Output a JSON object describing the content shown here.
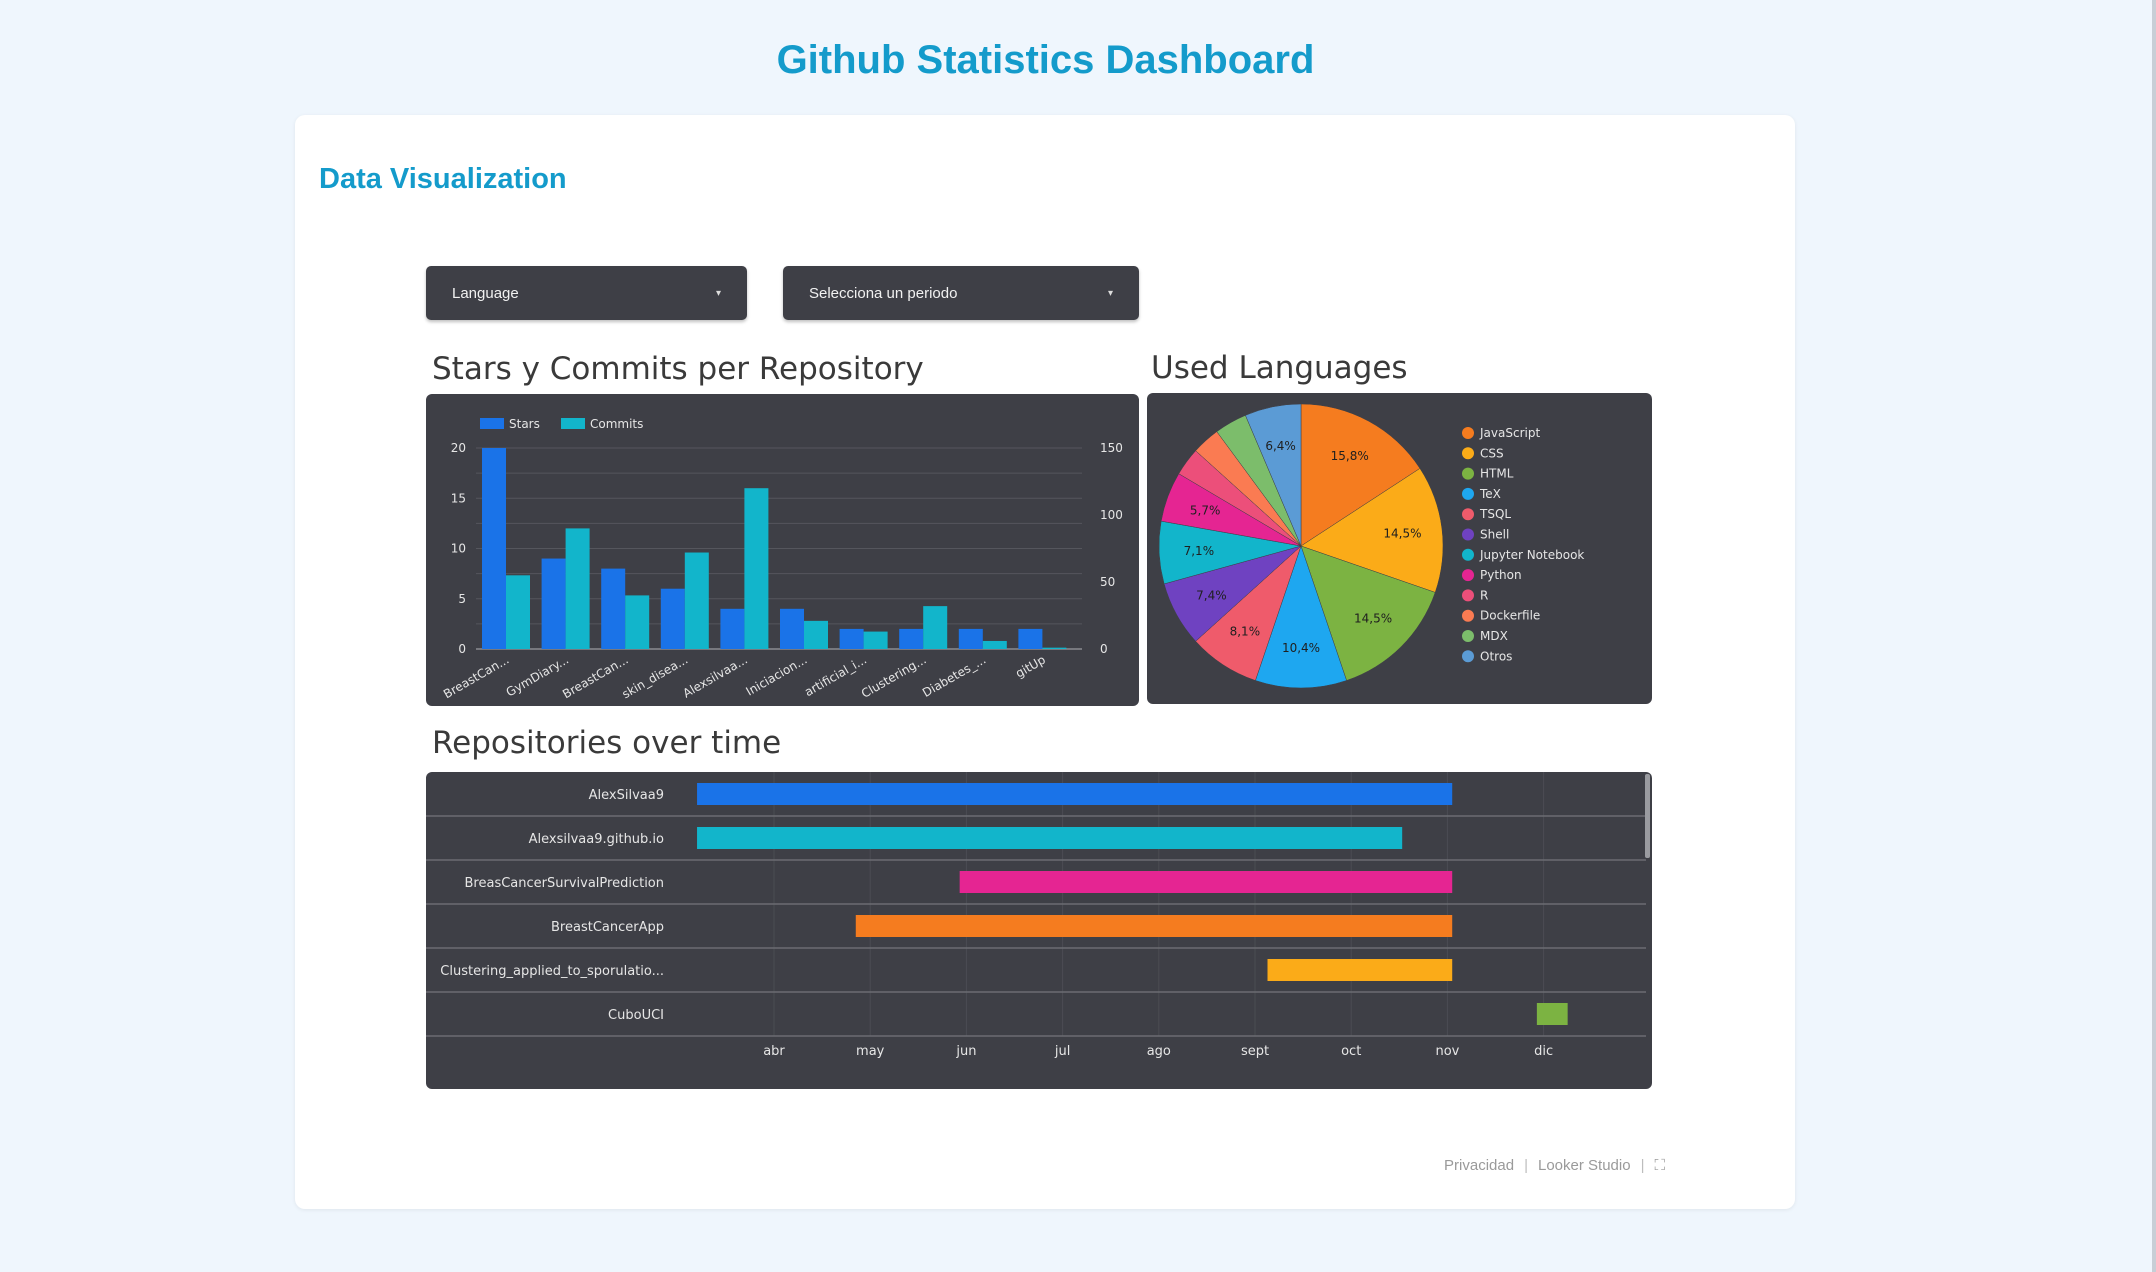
{
  "page": {
    "title": "Github Statistics Dashboard"
  },
  "card": {
    "title": "Data Visualization"
  },
  "filters": {
    "language": "Language",
    "period": "Selecciona un periodo"
  },
  "charts": {
    "bar_title": "Stars y Commits per Repository",
    "pie_title": "Used Languages",
    "gantt_title": "Repositories over time"
  },
  "footer": {
    "privacy": "Privacidad",
    "brand": "Looker Studio"
  },
  "colors": {
    "stars": "#1a73e8",
    "commits": "#12b5cb",
    "panel": "#3e3f46"
  },
  "chart_data": [
    {
      "type": "bar",
      "categories": [
        "BreastCan...",
        "GymDiary...",
        "BreastCan...",
        "skin_disea...",
        "Alexsilvaa...",
        "Iniciacion...",
        "artificial_i...",
        "Clustering...",
        "Diabetes_...",
        "gitUp"
      ],
      "series": [
        {
          "name": "Stars",
          "axis": "left",
          "values": [
            20,
            9,
            8,
            6,
            4,
            4,
            2,
            2,
            2,
            2
          ]
        },
        {
          "name": "Commits",
          "axis": "right",
          "values": [
            55,
            90,
            40,
            72,
            120,
            21,
            13,
            32,
            6,
            1
          ]
        }
      ],
      "left_ticks": [
        0,
        5,
        10,
        15,
        20
      ],
      "right_ticks": [
        0,
        50,
        100,
        150
      ],
      "ylim_left": [
        0,
        20
      ],
      "ylim_right": [
        0,
        150
      ],
      "legend": "top-left"
    },
    {
      "type": "pie",
      "slices": [
        {
          "label": "JavaScript",
          "value": 15.8,
          "text": "15,8%",
          "color": "#f57c1f"
        },
        {
          "label": "CSS",
          "value": 14.5,
          "text": "14,5%",
          "color": "#fbab18"
        },
        {
          "label": "HTML",
          "value": 14.5,
          "text": "14,5%",
          "color": "#7cb342"
        },
        {
          "label": "TeX",
          "value": 10.4,
          "text": "10,4%",
          "color": "#1ea7f0"
        },
        {
          "label": "TSQL",
          "value": 8.1,
          "text": "8,1%",
          "color": "#ef5b6b"
        },
        {
          "label": "Shell",
          "value": 7.4,
          "text": "7,4%",
          "color": "#6f42c1"
        },
        {
          "label": "Jupyter Notebook",
          "value": 7.1,
          "text": "7,1%",
          "color": "#12b5cb"
        },
        {
          "label": "Python",
          "value": 5.7,
          "text": "5,7%",
          "color": "#e52592"
        },
        {
          "label": "R",
          "value": 3.2,
          "text": "",
          "color": "#ec4f7a"
        },
        {
          "label": "Dockerfile",
          "value": 3.2,
          "text": "",
          "color": "#fa7b52"
        },
        {
          "label": "MDX",
          "value": 3.7,
          "text": "",
          "color": "#7cbd6b"
        },
        {
          "label": "Otros",
          "value": 6.4,
          "text": "6,4%",
          "color": "#5b9bd5"
        }
      ],
      "legend": "right"
    },
    {
      "type": "gantt",
      "months": [
        "abr",
        "may",
        "jun",
        "jul",
        "ago",
        "sept",
        "oct",
        "nov",
        "dic"
      ],
      "rows": [
        {
          "label": "AlexSilvaa9",
          "start": 3.2,
          "end": 11.05,
          "color": "#1a73e8"
        },
        {
          "label": "Alexsilvaa9.github.io",
          "start": 3.2,
          "end": 10.53,
          "color": "#12b5cb"
        },
        {
          "label": "BreasCancerSurvivalPrediction",
          "start": 5.93,
          "end": 11.05,
          "color": "#e52592"
        },
        {
          "label": "BreastCancerApp",
          "start": 4.85,
          "end": 11.05,
          "color": "#f57c1f"
        },
        {
          "label": "Clustering_applied_to_sporulatio...",
          "start": 9.13,
          "end": 11.05,
          "color": "#fbab18"
        },
        {
          "label": "CuboUCI",
          "start": 11.93,
          "end": 12.25,
          "color": "#7cb342"
        }
      ]
    }
  ]
}
